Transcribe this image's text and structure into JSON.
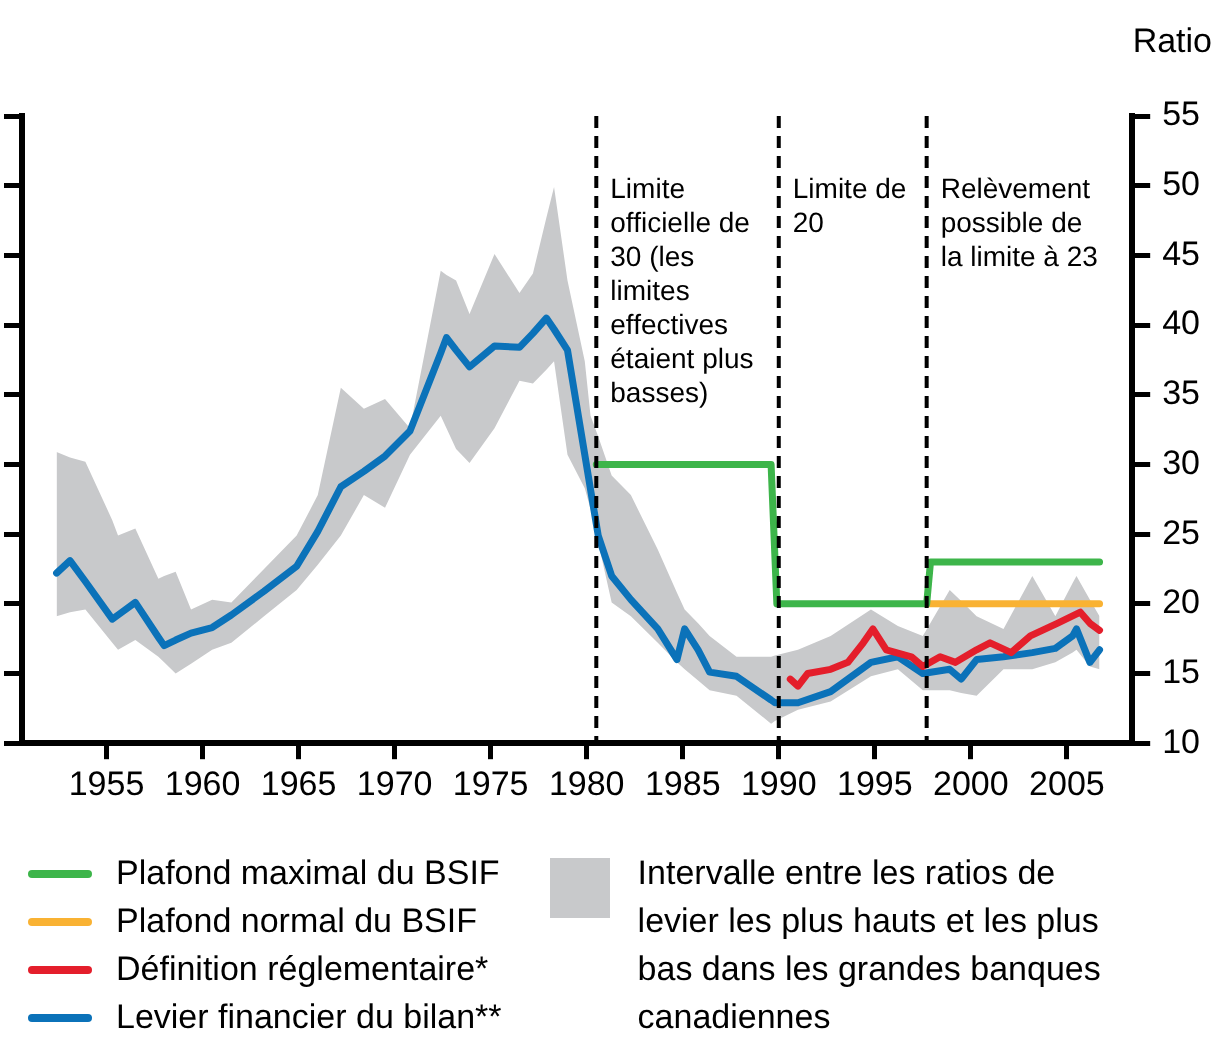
{
  "chart_data": {
    "type": "line",
    "ylabel": "Ratio",
    "xlim": [
      1950.6,
      2008.4
    ],
    "xticks": [
      1955,
      1960,
      1965,
      1970,
      1975,
      1980,
      1985,
      1990,
      1995,
      2000,
      2005
    ],
    "ylim": [
      10,
      55
    ],
    "yticks": [
      10,
      15,
      20,
      25,
      30,
      35,
      40,
      45,
      50,
      55
    ],
    "grid": false,
    "legend": "bottom",
    "marker": "none",
    "line_style": "solid",
    "annotations": [
      "Intervalle entre les ratios de levier les plus hauts et les plus bas dans les grandes banques canadiennes"
    ],
    "series": [
      {
        "name": "Plafond maximal du BSIF",
        "color": "#3db54a",
        "x": [
          1980.5,
          1989.6,
          1989.9,
          1997.7,
          1997.9,
          2006.7
        ],
        "values": [
          30,
          30,
          20,
          20,
          23,
          23
        ]
      },
      {
        "name": "Plafond normal du BSIF",
        "color": "#f9b233",
        "x": [
          1997.7,
          2006.7
        ],
        "values": [
          20,
          20
        ]
      },
      {
        "name": "Définition réglementaire*",
        "color": "#e41e2b",
        "x": [
          1990.6,
          1991.0,
          1991.5,
          1992.7,
          1993.6,
          1994.4,
          1994.9,
          1995.6,
          1996.9,
          1997.5,
          1998.4,
          1999.2,
          2000.3,
          2001.0,
          2002.1,
          2003.1,
          2004.5,
          2005.7,
          2006.2,
          2006.7
        ],
        "values": [
          14.6,
          14.1,
          15.0,
          15.3,
          15.8,
          17.2,
          18.2,
          16.7,
          16.2,
          15.5,
          16.2,
          15.8,
          16.7,
          17.2,
          16.5,
          17.7,
          18.6,
          19.4,
          18.6,
          18.1
        ]
      },
      {
        "name": "Levier financier du bilan**",
        "color": "#0b72b9",
        "x": [
          1952.4,
          1953.1,
          1953.9,
          1955.3,
          1955.6,
          1956.5,
          1957.7,
          1958.0,
          1958.6,
          1959.4,
          1960.5,
          1961.5,
          1963.2,
          1964.9,
          1966.0,
          1967.2,
          1968.4,
          1969.5,
          1970.8,
          1972.4,
          1972.7,
          1973.2,
          1973.9,
          1975.2,
          1976.5,
          1977.2,
          1977.9,
          1978.3,
          1979.0,
          1979.9,
          1980.2,
          1980.6,
          1981.3,
          1982.3,
          1983.7,
          1984.7,
          1985.1,
          1985.8,
          1986.4,
          1987.8,
          1989.6,
          1989.8,
          1991.0,
          1992.7,
          1994.8,
          1996.2,
          1997.5,
          1998.9,
          1999.5,
          2000.3,
          2001.7,
          2003.2,
          2004.4,
          2005.3,
          2005.5,
          2006.2,
          2006.7
        ],
        "values": [
          22.2,
          23.1,
          21.6,
          18.9,
          19.2,
          20.1,
          17.6,
          17.0,
          17.4,
          17.9,
          18.3,
          19.2,
          20.9,
          22.7,
          25.2,
          28.4,
          29.5,
          30.6,
          32.4,
          38.0,
          39.1,
          38.2,
          37.0,
          38.5,
          38.4,
          39.4,
          40.5,
          39.7,
          38.2,
          30.7,
          28.2,
          24.9,
          22.0,
          20.3,
          18.2,
          16.0,
          18.2,
          16.7,
          15.1,
          14.8,
          13.1,
          12.9,
          12.9,
          13.7,
          15.8,
          16.2,
          15.0,
          15.3,
          14.6,
          16.0,
          16.2,
          16.5,
          16.8,
          17.7,
          18.2,
          15.8,
          16.7
        ],
        "lower": [
          19.1,
          19.4,
          19.6,
          17.2,
          16.7,
          17.4,
          16.2,
          15.8,
          15.0,
          15.7,
          16.7,
          17.2,
          19.1,
          21.0,
          22.8,
          24.9,
          27.8,
          26.9,
          30.7,
          33.5,
          32.6,
          31.1,
          30.1,
          32.6,
          36.0,
          35.8,
          36.8,
          37.4,
          30.7,
          28.3,
          26.8,
          24.4,
          20.1,
          19.1,
          17.2,
          15.8,
          15.3,
          14.5,
          13.8,
          13.4,
          11.4,
          11.6,
          12.4,
          13.0,
          14.8,
          15.3,
          13.8,
          13.8,
          13.6,
          13.4,
          15.3,
          15.3,
          15.8,
          16.5,
          16.7,
          15.5,
          15.3
        ],
        "upper": [
          30.9,
          30.5,
          30.2,
          26.0,
          24.9,
          25.4,
          21.8,
          22.0,
          22.3,
          19.6,
          20.3,
          20.1,
          22.5,
          24.9,
          27.8,
          35.5,
          34.0,
          34.7,
          32.6,
          43.9,
          43.6,
          43.2,
          40.8,
          45.1,
          42.3,
          43.7,
          47.7,
          49.9,
          43.2,
          37.4,
          33.5,
          32.0,
          29.2,
          27.8,
          23.9,
          20.8,
          19.6,
          18.6,
          17.7,
          16.2,
          16.2,
          16.3,
          16.7,
          17.7,
          19.6,
          18.4,
          17.7,
          21.0,
          20.2,
          19.1,
          18.2,
          22.0,
          19.1,
          21.5,
          22.0,
          20.3,
          19.1
        ]
      }
    ],
    "ref_lines": [
      {
        "axis": "x",
        "value": 1980.5,
        "label": "Limite officielle de 30 (les limites effectives étaient plus basses)",
        "line_style": "dashed",
        "color": "#000000"
      },
      {
        "axis": "x",
        "value": 1990,
        "label": "Limite de 20",
        "line_style": "dashed",
        "color": "#000000"
      },
      {
        "axis": "x",
        "value": 1997.7,
        "label": "Relèvement possible de la limite à 23",
        "line_style": "dashed",
        "color": "#000000"
      }
    ]
  }
}
